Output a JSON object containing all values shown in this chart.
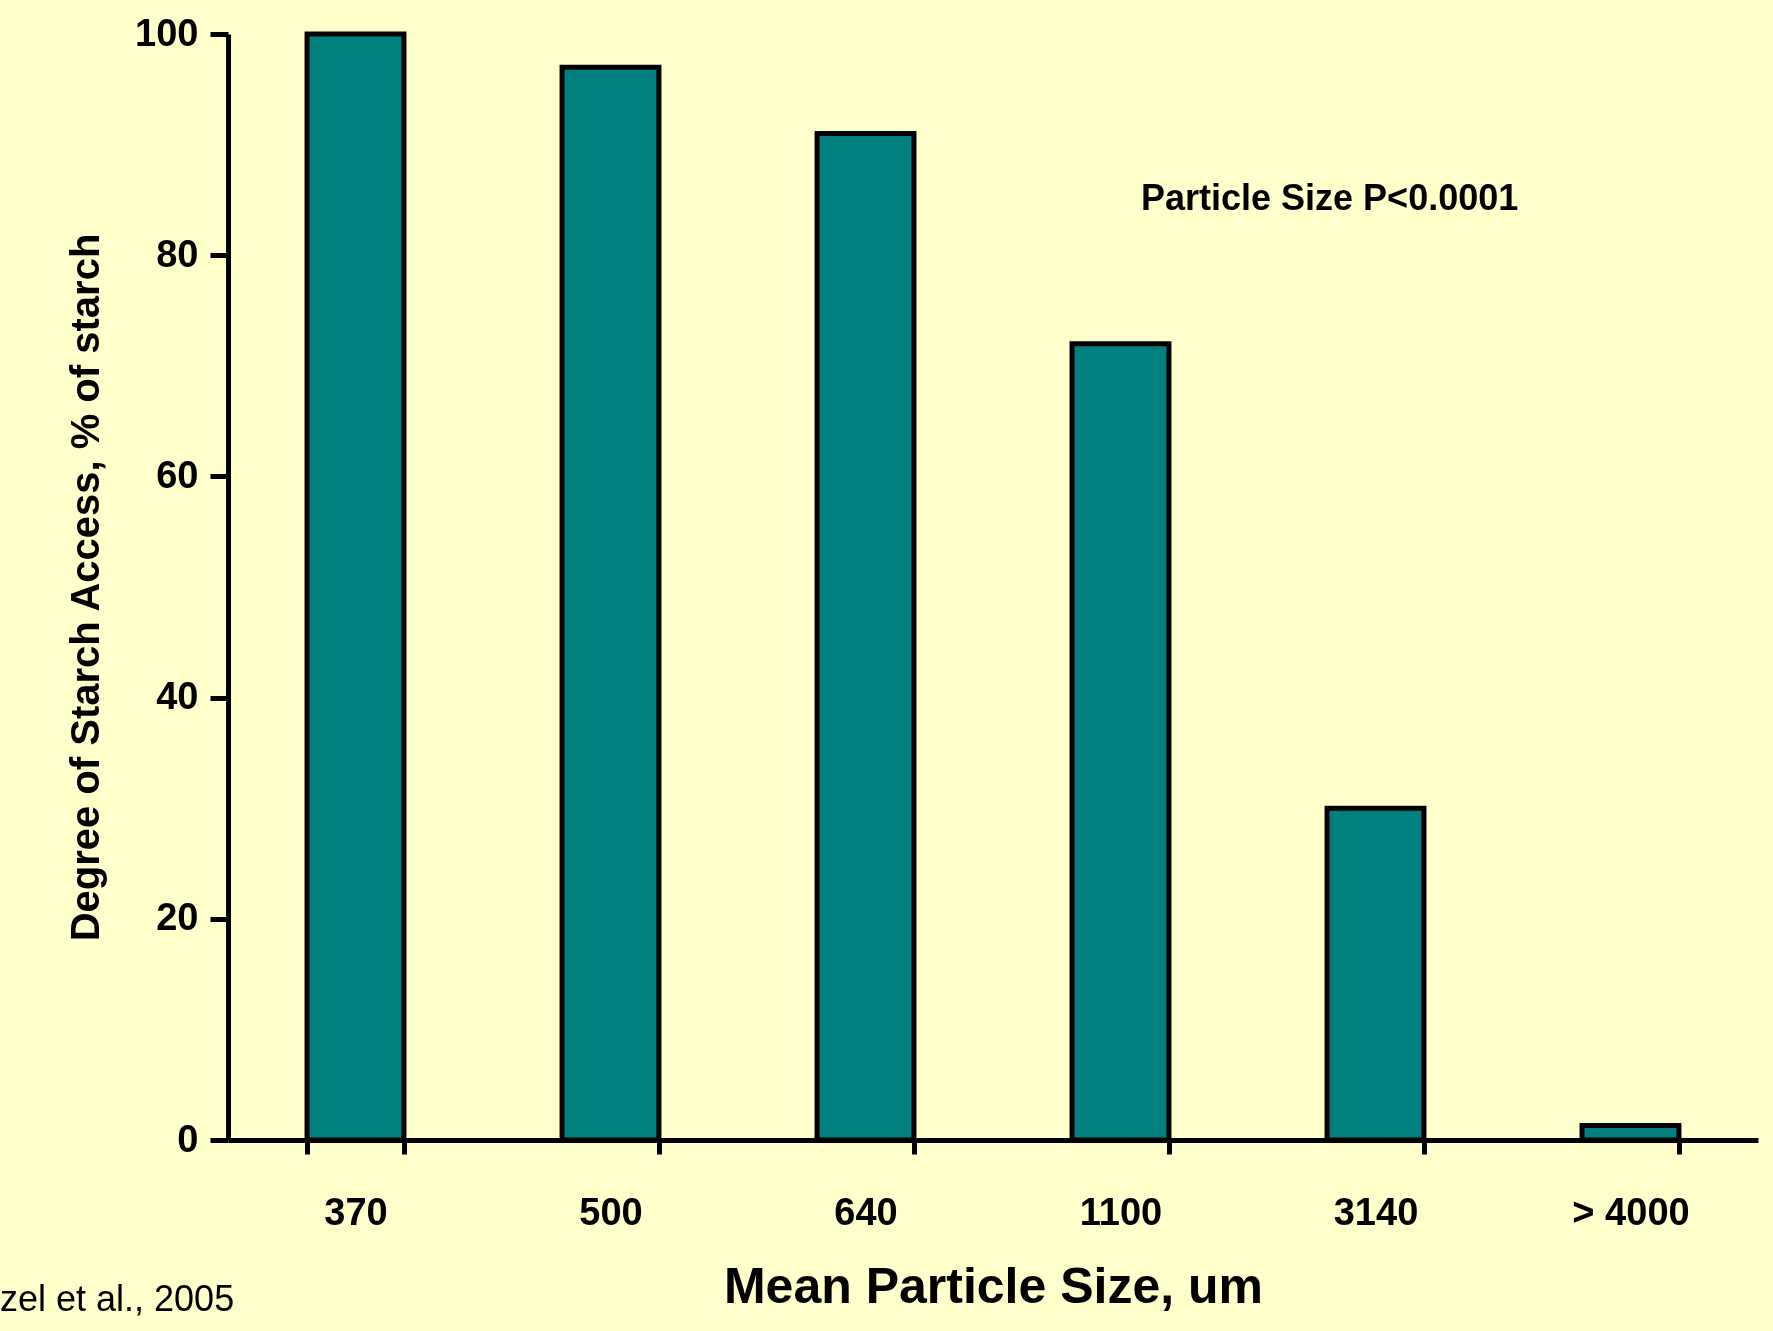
{
  "chart_data": {
    "type": "bar",
    "xlabel": "Mean Particle Size, um",
    "ylabel": "Degree of Starch Access, % of starch",
    "categories": [
      "370",
      "500",
      "640",
      "1100",
      "3140",
      "> 4000"
    ],
    "values": [
      100,
      97,
      91,
      72,
      30,
      1.3
    ],
    "color": "#008080",
    "ylim": [
      0,
      100
    ],
    "yticks": [
      0,
      20,
      40,
      60,
      80,
      100
    ],
    "grid": false,
    "annotations": [
      "Particle Size P<0.0001",
      "zel et al., 2005"
    ]
  }
}
